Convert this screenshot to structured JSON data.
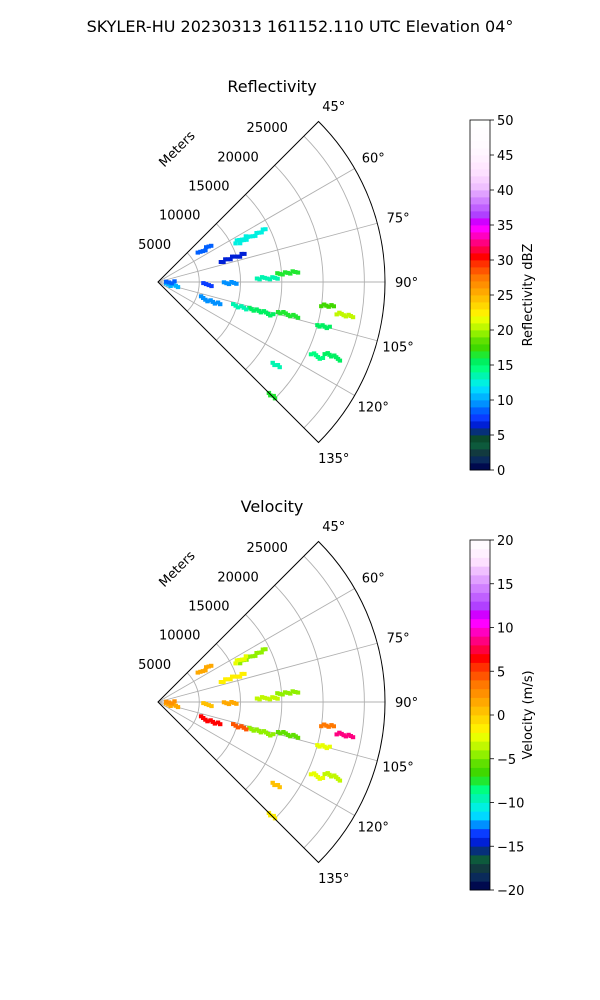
{
  "suptitle": "SKYLER-HU  20230313  161152.110 UTC Elevation 04°",
  "chart_data": [
    {
      "type": "polar-sector",
      "title": "Reflectivity",
      "radial_axis_label": "Meters",
      "radial_ticks": [
        5000,
        10000,
        15000,
        20000,
        25000
      ],
      "angle_ticks": [
        "45°",
        "60°",
        "75°",
        "90°",
        "105°",
        "120°",
        "135°"
      ],
      "angle_range_deg": [
        45,
        135
      ],
      "range_max_m": 27500,
      "grid": true,
      "colorbar": {
        "label": "Reflectivity dBZ",
        "range": [
          0,
          50
        ],
        "ticks": [
          "0",
          "5",
          "10",
          "15",
          "20",
          "25",
          "30",
          "35",
          "40",
          "45",
          "50"
        ],
        "colors": [
          "#000a4e",
          "#0a2a5a",
          "#123a3f",
          "#0d5a3c",
          "#0b4a2d",
          "#06307a",
          "#0020d6",
          "#0a3cff",
          "#0060ff",
          "#0090ff",
          "#00b4ff",
          "#00d8ff",
          "#00f0e0",
          "#00f5b0",
          "#00ff80",
          "#00f060",
          "#20e830",
          "#40d800",
          "#60e000",
          "#90f000",
          "#c0f800",
          "#e8ff00",
          "#ffef00",
          "#ffd800",
          "#ffc000",
          "#ffa800",
          "#ff9000",
          "#ff7800",
          "#ff5500",
          "#ff3000",
          "#ff0000",
          "#ff0040",
          "#ff0080",
          "#ff00c0",
          "#ff00ff",
          "#d000ff",
          "#b040ff",
          "#c060ff",
          "#d080ff",
          "#e0a0ff",
          "#f0c0ff",
          "#f8d0ff",
          "#fde0ff",
          "#ffe8ff",
          "#fff0ff",
          "#fff6ff",
          "#fffaff",
          "#fffcff",
          "#fffdff",
          "#ffffff"
        ]
      },
      "echoes": [
        {
          "az": 55,
          "r": [
            6000,
            7800
          ],
          "value": 8
        },
        {
          "az": 64,
          "r": [
            11000,
            14500
          ],
          "value": 12
        },
        {
          "az": 63,
          "r": [
            10500,
            12000
          ],
          "value": 12
        },
        {
          "az": 72,
          "r": [
            8000,
            11000
          ],
          "value": 6
        },
        {
          "az": 88,
          "r": [
            12000,
            14500
          ],
          "value": 13
        },
        {
          "az": 86,
          "r": [
            14500,
            17000
          ],
          "value": 16
        },
        {
          "az": 91,
          "r": [
            8000,
            9500
          ],
          "value": 9
        },
        {
          "az": 93,
          "r": [
            5500,
            6500
          ],
          "value": 7
        },
        {
          "az": 98,
          "r": [
            20000,
            21500
          ],
          "value": 17
        },
        {
          "az": 100,
          "r": [
            22000,
            24000
          ],
          "value": 20
        },
        {
          "az": 105,
          "r": [
            20000,
            21500
          ],
          "value": 15
        },
        {
          "az": 104,
          "r": [
            15000,
            17500
          ],
          "value": 16
        },
        {
          "az": 106,
          "r": [
            11500,
            14500
          ],
          "value": 15
        },
        {
          "az": 107,
          "r": [
            9500,
            11200
          ],
          "value": 13
        },
        {
          "az": 110,
          "r": [
            5500,
            8000
          ],
          "value": 9
        },
        {
          "az": 113,
          "r": [
            22000,
            24000
          ],
          "value": 15
        },
        {
          "az": 115,
          "r": [
            20500,
            22000
          ],
          "value": 14
        },
        {
          "az": 125,
          "r": [
            17000,
            18000
          ],
          "value": 13
        },
        {
          "az": 135,
          "r": [
            19000,
            20000
          ],
          "value": 16
        },
        {
          "az": 102,
          "r": [
            1000,
            2500
          ],
          "value": 10
        },
        {
          "az": 92,
          "r": [
            1000,
            2000
          ],
          "value": 8
        }
      ]
    },
    {
      "type": "polar-sector",
      "title": "Velocity",
      "radial_axis_label": "Meters",
      "radial_ticks": [
        5000,
        10000,
        15000,
        20000,
        25000
      ],
      "angle_ticks": [
        "45°",
        "60°",
        "75°",
        "90°",
        "105°",
        "120°",
        "135°"
      ],
      "angle_range_deg": [
        45,
        135
      ],
      "range_max_m": 27500,
      "grid": true,
      "colorbar": {
        "label": "Velocity (m/s)",
        "range": [
          -20,
          20
        ],
        "ticks": [
          "−20",
          "−15",
          "−10",
          "−5",
          "0",
          "5",
          "10",
          "15",
          "20"
        ],
        "colors": [
          "#000a4e",
          "#0a2a5a",
          "#123a3f",
          "#0d5a3c",
          "#06307a",
          "#0020d6",
          "#0a3cff",
          "#0090ff",
          "#00d8ff",
          "#00f0e0",
          "#00f5b0",
          "#00ff80",
          "#20e830",
          "#40d800",
          "#60e000",
          "#90f000",
          "#c0f800",
          "#e8ff00",
          "#ffef00",
          "#ffd800",
          "#ffc000",
          "#ffa800",
          "#ff9000",
          "#ff7800",
          "#ff5500",
          "#ff3000",
          "#ff0000",
          "#ff0040",
          "#ff0080",
          "#ff00c0",
          "#ff00ff",
          "#d000ff",
          "#b040ff",
          "#c060ff",
          "#d080ff",
          "#e0a0ff",
          "#f0c0ff",
          "#fde0ff",
          "#fff0ff",
          "#fffaff"
        ]
      },
      "echoes": [
        {
          "az": 55,
          "r": [
            6000,
            7800
          ],
          "value": 1
        },
        {
          "az": 64,
          "r": [
            11000,
            14500
          ],
          "value": -5
        },
        {
          "az": 63,
          "r": [
            10500,
            12000
          ],
          "value": -3
        },
        {
          "az": 72,
          "r": [
            8000,
            11000
          ],
          "value": -2
        },
        {
          "az": 88,
          "r": [
            12000,
            14500
          ],
          "value": -4
        },
        {
          "az": 86,
          "r": [
            14500,
            17000
          ],
          "value": -5
        },
        {
          "az": 91,
          "r": [
            8000,
            9500
          ],
          "value": 1
        },
        {
          "az": 93,
          "r": [
            5500,
            6500
          ],
          "value": 0
        },
        {
          "az": 98,
          "r": [
            20000,
            21500
          ],
          "value": 3
        },
        {
          "az": 100,
          "r": [
            22000,
            24000
          ],
          "value": 8
        },
        {
          "az": 105,
          "r": [
            20000,
            21500
          ],
          "value": -3
        },
        {
          "az": 104,
          "r": [
            15000,
            17500
          ],
          "value": -6
        },
        {
          "az": 106,
          "r": [
            11500,
            14500
          ],
          "value": -5
        },
        {
          "az": 107,
          "r": [
            9500,
            11200
          ],
          "value": 4
        },
        {
          "az": 110,
          "r": [
            5500,
            8000
          ],
          "value": 6
        },
        {
          "az": 113,
          "r": [
            22000,
            24000
          ],
          "value": -4
        },
        {
          "az": 115,
          "r": [
            20500,
            22000
          ],
          "value": -3
        },
        {
          "az": 125,
          "r": [
            17000,
            18000
          ],
          "value": 0
        },
        {
          "az": 135,
          "r": [
            19000,
            20000
          ],
          "value": -2
        },
        {
          "az": 102,
          "r": [
            1000,
            2500
          ],
          "value": 1
        },
        {
          "az": 92,
          "r": [
            1000,
            2000
          ],
          "value": 2
        }
      ]
    }
  ]
}
